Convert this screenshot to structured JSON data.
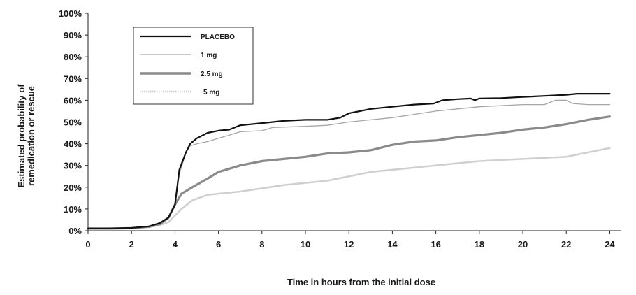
{
  "chart_data": {
    "type": "line",
    "title": "",
    "xlabel": "Time in hours from the initial dose",
    "ylabel": [
      "Estimated probability of",
      "remedication or rescue"
    ],
    "xlim": [
      0,
      24.5
    ],
    "ylim": [
      0,
      100
    ],
    "x_ticks": [
      0,
      2,
      4,
      6,
      8,
      10,
      12,
      14,
      16,
      18,
      20,
      22,
      24
    ],
    "y_ticks": [
      0,
      10,
      20,
      30,
      40,
      50,
      60,
      70,
      80,
      90,
      100
    ],
    "y_tick_labels": [
      "0%",
      "10%",
      "20%",
      "30%",
      "40%",
      "50%",
      "60%",
      "70%",
      "80%",
      "90%",
      "100%"
    ],
    "grid": false,
    "legend_position": "top-left",
    "series": [
      {
        "name": "PLACEBO",
        "color": "#111111",
        "style": "solid-thick",
        "points": [
          [
            0,
            1
          ],
          [
            1,
            1
          ],
          [
            2,
            1.3
          ],
          [
            2.8,
            2
          ],
          [
            3.3,
            3.5
          ],
          [
            3.7,
            6
          ],
          [
            4,
            12
          ],
          [
            4.2,
            28
          ],
          [
            4.5,
            36
          ],
          [
            4.7,
            40
          ],
          [
            5,
            42.5
          ],
          [
            5.5,
            45
          ],
          [
            6,
            46
          ],
          [
            6.5,
            46.5
          ],
          [
            7,
            48.5
          ],
          [
            8,
            49.5
          ],
          [
            9,
            50.5
          ],
          [
            10,
            51
          ],
          [
            11,
            51
          ],
          [
            11.6,
            52
          ],
          [
            12,
            54
          ],
          [
            13,
            56
          ],
          [
            14,
            57
          ],
          [
            15,
            58
          ],
          [
            15.9,
            58.5
          ],
          [
            16.3,
            60
          ],
          [
            17,
            60.5
          ],
          [
            17.6,
            60.8
          ],
          [
            17.8,
            60
          ],
          [
            18,
            60.8
          ],
          [
            19,
            61
          ],
          [
            20,
            61.5
          ],
          [
            21,
            62
          ],
          [
            22,
            62.5
          ],
          [
            22.5,
            63
          ],
          [
            24,
            63
          ]
        ]
      },
      {
        "name": "1 mg",
        "color": "#a6a6a6",
        "style": "solid-thin",
        "points": [
          [
            0,
            1
          ],
          [
            1,
            1
          ],
          [
            2,
            1.3
          ],
          [
            2.8,
            2
          ],
          [
            3.3,
            3.5
          ],
          [
            3.7,
            6
          ],
          [
            4,
            12
          ],
          [
            4.2,
            26
          ],
          [
            4.5,
            36
          ],
          [
            4.7,
            39
          ],
          [
            5,
            40
          ],
          [
            5.5,
            41
          ],
          [
            6,
            42.5
          ],
          [
            6.5,
            44
          ],
          [
            7,
            45.5
          ],
          [
            8,
            46
          ],
          [
            8.5,
            47.5
          ],
          [
            10,
            48
          ],
          [
            11,
            48.5
          ],
          [
            12,
            50
          ],
          [
            13,
            51
          ],
          [
            14,
            52
          ],
          [
            15,
            53.5
          ],
          [
            16,
            55
          ],
          [
            17,
            56
          ],
          [
            18,
            57
          ],
          [
            19,
            57.5
          ],
          [
            20,
            58
          ],
          [
            21,
            58
          ],
          [
            21.5,
            60
          ],
          [
            22,
            60
          ],
          [
            22.3,
            58.5
          ],
          [
            23,
            58
          ],
          [
            24,
            58
          ]
        ]
      },
      {
        "name": "2.5 mg",
        "color": "#8a8a8a",
        "style": "solid-thick",
        "points": [
          [
            0,
            1
          ],
          [
            1,
            1
          ],
          [
            2,
            1.2
          ],
          [
            2.8,
            1.8
          ],
          [
            3.3,
            3
          ],
          [
            3.7,
            6
          ],
          [
            4,
            12
          ],
          [
            4.3,
            17
          ],
          [
            4.8,
            20
          ],
          [
            5.5,
            24
          ],
          [
            6,
            27
          ],
          [
            7,
            30
          ],
          [
            8,
            32
          ],
          [
            9,
            33
          ],
          [
            10,
            34
          ],
          [
            11,
            35.5
          ],
          [
            12,
            36
          ],
          [
            13,
            37
          ],
          [
            14,
            39.5
          ],
          [
            15,
            41
          ],
          [
            16,
            41.5
          ],
          [
            17,
            43
          ],
          [
            18,
            44
          ],
          [
            19,
            45
          ],
          [
            20,
            46.5
          ],
          [
            21,
            47.5
          ],
          [
            22,
            49
          ],
          [
            23,
            51
          ],
          [
            24,
            52.5
          ]
        ]
      },
      {
        "name": "5 mg",
        "color": "#cfcfcf",
        "style": "dotted",
        "points": [
          [
            0,
            1
          ],
          [
            1,
            1
          ],
          [
            2,
            1.2
          ],
          [
            2.8,
            1.8
          ],
          [
            3.3,
            2.5
          ],
          [
            3.7,
            4
          ],
          [
            4,
            7
          ],
          [
            4.3,
            10
          ],
          [
            4.8,
            14
          ],
          [
            5.5,
            16.5
          ],
          [
            6,
            17
          ],
          [
            7,
            18
          ],
          [
            8,
            19.5
          ],
          [
            9,
            21
          ],
          [
            10,
            22
          ],
          [
            11,
            23
          ],
          [
            12,
            25
          ],
          [
            13,
            27
          ],
          [
            14,
            28
          ],
          [
            15,
            29
          ],
          [
            16,
            30
          ],
          [
            17,
            31
          ],
          [
            18,
            32
          ],
          [
            19,
            32.5
          ],
          [
            20,
            33
          ],
          [
            21,
            33.5
          ],
          [
            22,
            34
          ],
          [
            23,
            36
          ],
          [
            24,
            38
          ]
        ]
      }
    ]
  }
}
